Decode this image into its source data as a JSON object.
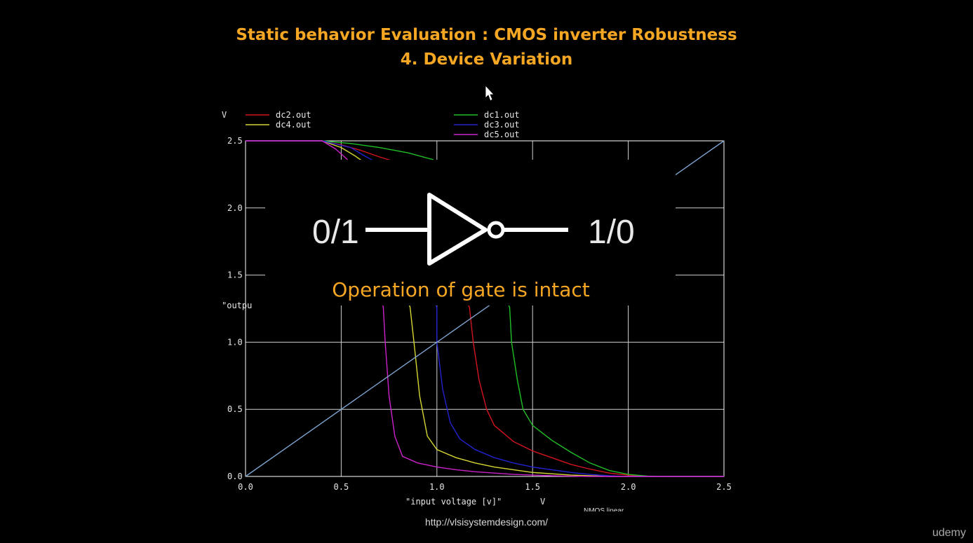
{
  "slide": {
    "title_line1": "Static behavior Evaluation : CMOS inverter Robustness",
    "title_line2": "4. Device Variation",
    "url": "http://vlsisystemdesign.com/",
    "brand": "udemy",
    "partial_text": "NMOS linear"
  },
  "overlay": {
    "input_label": "0/1",
    "output_label": "1/0",
    "caption": "Operation of gate is intact",
    "caption_color": "#f5a623",
    "icon": "inverter-gate-icon"
  },
  "chart_data": {
    "type": "line",
    "ylabel_unit": "V",
    "ylabel_partial": "\"outpu",
    "xlabel": "\"input voltage [v]\"",
    "xlabel_unit": "V",
    "xlim": [
      0,
      2.5
    ],
    "ylim": [
      0,
      2.5
    ],
    "xticks": [
      "0.0",
      "0.5",
      "1.0",
      "1.5",
      "2.0",
      "2.5"
    ],
    "yticks": [
      "0.0",
      "0.5",
      "1.0",
      "1.5",
      "2.0",
      "2.5"
    ],
    "grid": true,
    "legend_position": "top",
    "series": [
      {
        "name": "dc2.out",
        "color": "#d4141e",
        "points": [
          [
            0,
            2.5
          ],
          [
            0.4,
            2.5
          ],
          [
            0.5,
            2.47
          ],
          [
            0.6,
            2.43
          ],
          [
            0.7,
            2.38
          ],
          [
            0.77,
            2.35
          ],
          [
            1.17,
            1.26
          ],
          [
            1.19,
            1.0
          ],
          [
            1.22,
            0.72
          ],
          [
            1.26,
            0.5
          ],
          [
            1.3,
            0.38
          ],
          [
            1.4,
            0.26
          ],
          [
            1.5,
            0.19
          ],
          [
            1.6,
            0.14
          ],
          [
            1.7,
            0.09
          ],
          [
            1.8,
            0.055
          ],
          [
            1.9,
            0.025
          ],
          [
            2.0,
            0.01
          ],
          [
            2.1,
            0.0
          ],
          [
            2.5,
            0.0
          ]
        ]
      },
      {
        "name": "dc1.out",
        "color": "#1fbf26",
        "points": [
          [
            0,
            2.5
          ],
          [
            0.4,
            2.5
          ],
          [
            0.55,
            2.48
          ],
          [
            0.7,
            2.45
          ],
          [
            0.85,
            2.41
          ],
          [
            0.98,
            2.36
          ],
          [
            1.38,
            1.26
          ],
          [
            1.39,
            1.0
          ],
          [
            1.42,
            0.72
          ],
          [
            1.45,
            0.5
          ],
          [
            1.5,
            0.38
          ],
          [
            1.6,
            0.27
          ],
          [
            1.7,
            0.18
          ],
          [
            1.8,
            0.1
          ],
          [
            1.9,
            0.045
          ],
          [
            2.0,
            0.015
          ],
          [
            2.1,
            0.003
          ],
          [
            2.2,
            0.0
          ],
          [
            2.5,
            0.0
          ]
        ]
      },
      {
        "name": "dc4.out",
        "color": "#d6d633",
        "points": [
          [
            0,
            2.5
          ],
          [
            0.4,
            2.5
          ],
          [
            0.5,
            2.45
          ],
          [
            0.57,
            2.39
          ],
          [
            0.61,
            2.35
          ],
          [
            0.86,
            1.26
          ],
          [
            0.88,
            1.0
          ],
          [
            0.91,
            0.6
          ],
          [
            0.95,
            0.3
          ],
          [
            1.0,
            0.2
          ],
          [
            1.1,
            0.14
          ],
          [
            1.2,
            0.1
          ],
          [
            1.3,
            0.07
          ],
          [
            1.4,
            0.05
          ],
          [
            1.5,
            0.03
          ],
          [
            1.6,
            0.02
          ],
          [
            1.7,
            0.01
          ],
          [
            1.8,
            0.005
          ],
          [
            1.9,
            0.0
          ],
          [
            2.5,
            0.0
          ]
        ]
      },
      {
        "name": "dc3.out",
        "color": "#2222d0",
        "points": [
          [
            0,
            2.5
          ],
          [
            0.4,
            2.5
          ],
          [
            0.55,
            2.45
          ],
          [
            0.62,
            2.39
          ],
          [
            0.67,
            2.35
          ],
          [
            1.0,
            1.26
          ],
          [
            1.0,
            1.0
          ],
          [
            1.03,
            0.65
          ],
          [
            1.07,
            0.4
          ],
          [
            1.12,
            0.28
          ],
          [
            1.2,
            0.2
          ],
          [
            1.3,
            0.14
          ],
          [
            1.4,
            0.1
          ],
          [
            1.5,
            0.07
          ],
          [
            1.6,
            0.05
          ],
          [
            1.7,
            0.03
          ],
          [
            1.8,
            0.015
          ],
          [
            1.9,
            0.005
          ],
          [
            2.0,
            0.0
          ],
          [
            2.5,
            0.0
          ]
        ]
      },
      {
        "name": "dc5.out",
        "color": "#cc22cc",
        "points": [
          [
            0,
            2.5
          ],
          [
            0.4,
            2.5
          ],
          [
            0.47,
            2.44
          ],
          [
            0.51,
            2.39
          ],
          [
            0.54,
            2.35
          ],
          [
            0.72,
            1.26
          ],
          [
            0.73,
            1.0
          ],
          [
            0.75,
            0.6
          ],
          [
            0.78,
            0.3
          ],
          [
            0.82,
            0.15
          ],
          [
            0.9,
            0.1
          ],
          [
            1.0,
            0.07
          ],
          [
            1.1,
            0.05
          ],
          [
            1.2,
            0.035
          ],
          [
            1.3,
            0.025
          ],
          [
            1.4,
            0.015
          ],
          [
            1.5,
            0.01
          ],
          [
            1.6,
            0.005
          ],
          [
            1.7,
            0.002
          ],
          [
            1.8,
            0.0
          ],
          [
            2.5,
            0.0
          ]
        ]
      },
      {
        "name": "",
        "color": "#7da3cf",
        "points": [
          [
            0,
            0
          ],
          [
            1.27,
            1.27
          ],
          [
            2.25,
            2.25
          ],
          [
            2.5,
            2.5
          ]
        ]
      }
    ]
  }
}
